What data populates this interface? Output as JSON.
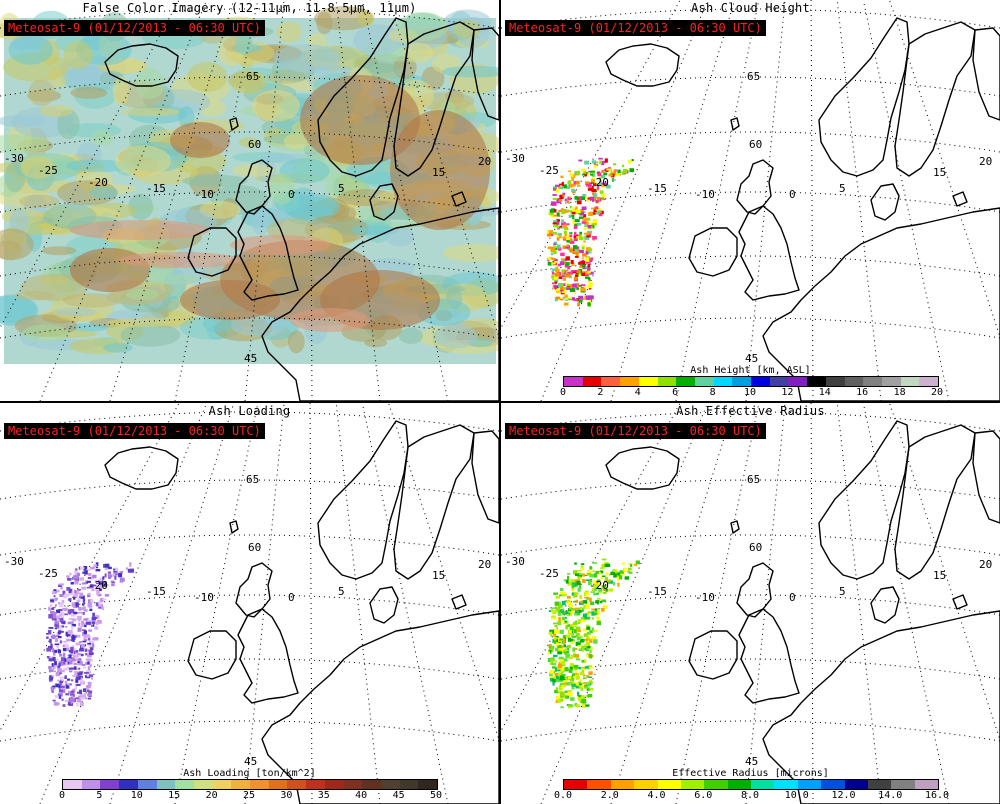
{
  "panels": [
    {
      "title": "False Color Imagery (12-11μm, 11-8.5μm, 11μm)",
      "stamp": "Meteosat-9  (01/12/2013 - 06:30 UTC)",
      "kind": "imagery"
    },
    {
      "title": "Ash Cloud Height",
      "stamp": "Meteosat-9  (01/12/2013 - 06:30 UTC)",
      "kind": "ash",
      "ash_color_hint": "mixed",
      "colorbar": {
        "title": "Ash Height [km, ASL]",
        "ticks": [
          "0",
          "2",
          "4",
          "6",
          "8",
          "10",
          "12",
          "14",
          "16",
          "18",
          "20"
        ],
        "colors": [
          "#c830c8",
          "#e60000",
          "#ff6040",
          "#ffa000",
          "#ffff00",
          "#90e000",
          "#00b000",
          "#60d0a0",
          "#00d8ff",
          "#00a0e0",
          "#0000e0",
          "#4040a0",
          "#8020c0",
          "#000000",
          "#404040",
          "#606060",
          "#808080",
          "#a0a0a0",
          "#c0d8c0",
          "#d0b0d0"
        ]
      }
    },
    {
      "title": "Ash Loading",
      "stamp": "Meteosat-9  (01/12/2013 - 06:30 UTC)",
      "kind": "ash",
      "ash_color_hint": "purple",
      "colorbar": {
        "title": "Ash Loading [ton/km^2]",
        "ticks": [
          "0",
          "5",
          "10",
          "15",
          "20",
          "25",
          "30",
          "35",
          "40",
          "45",
          "50"
        ],
        "colors": [
          "#e8c8f0",
          "#c090e8",
          "#8040d0",
          "#3030c0",
          "#6080e0",
          "#80c0c0",
          "#a0e0a0",
          "#d0e080",
          "#f0d060",
          "#f0b040",
          "#f09030",
          "#e07020",
          "#d05020",
          "#c03020",
          "#a02818",
          "#803020",
          "#603020",
          "#504030",
          "#403828",
          "#302820"
        ]
      }
    },
    {
      "title": "Ash Effective Radius",
      "stamp": "Meteosat-9  (01/12/2013 - 06:30 UTC)",
      "kind": "ash",
      "ash_color_hint": "green",
      "colorbar": {
        "title": "Effective Radius [microns]",
        "ticks": [
          "0.0",
          "2.0",
          "4.0",
          "6.0",
          "8.0",
          "10.0",
          "12.0",
          "14.0",
          "16.0"
        ],
        "colors": [
          "#e60000",
          "#ff5000",
          "#ffa000",
          "#ffd000",
          "#ffff00",
          "#a0f000",
          "#40d000",
          "#00b000",
          "#00e0a0",
          "#00e0ff",
          "#00a0ff",
          "#0050e0",
          "#000090",
          "#404040",
          "#808080",
          "#c0a0c0"
        ]
      }
    }
  ],
  "map_labels": {
    "lon": [
      "-30",
      "-25",
      "-20",
      "-15",
      "-10",
      "0",
      "5",
      "15",
      "20"
    ],
    "lat": [
      "65",
      "60",
      "45"
    ]
  },
  "colors": {
    "stamp_text": "#ff2020",
    "stamp_bg": "#000000",
    "coastline": "#000000"
  }
}
